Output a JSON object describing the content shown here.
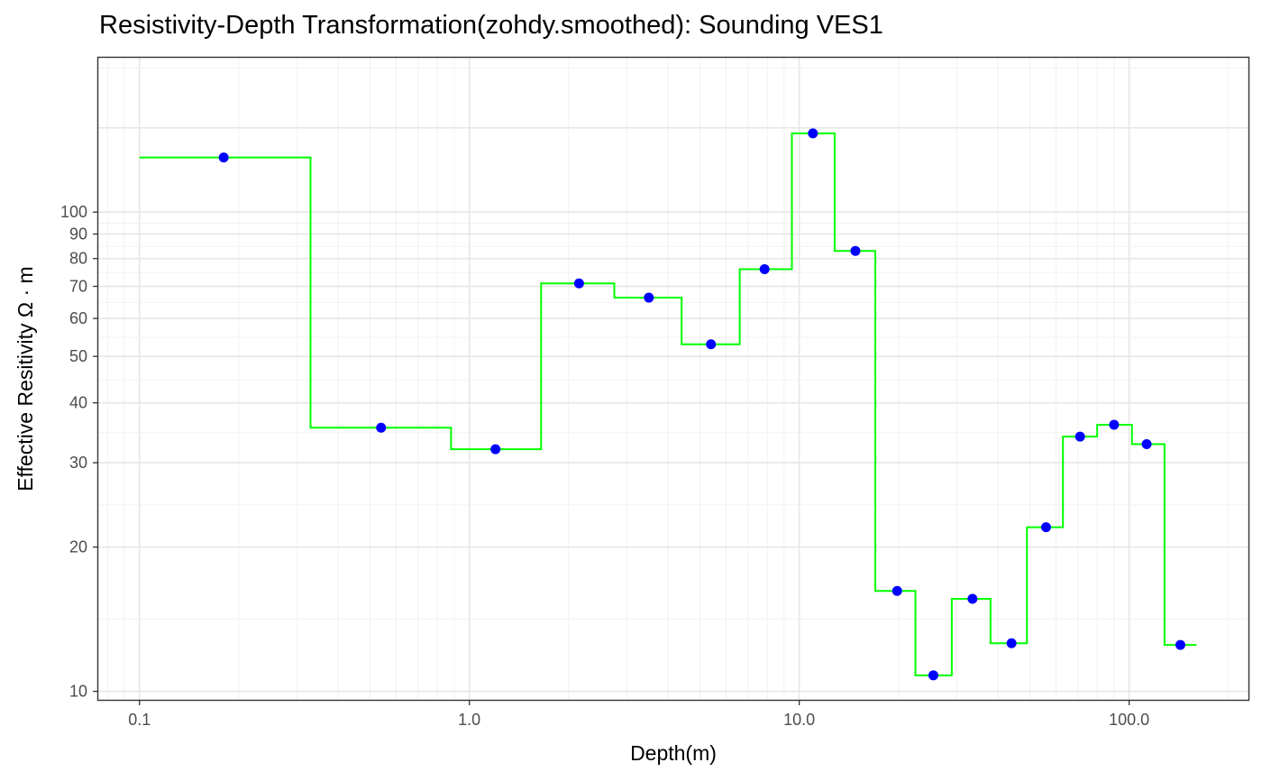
{
  "chart_data": {
    "type": "line",
    "title": "Resistivity-Depth Transformation(zohdy.smoothed): Sounding VES1",
    "xlabel": "Depth(m)",
    "ylabel_text": "Effective Resitivity",
    "ylabel_unit": "Ω · m",
    "x_scale": "log",
    "y_scale": "log",
    "xlim": [
      0.075,
      230
    ],
    "ylim": [
      9.6,
      210
    ],
    "x_ticks": [
      0.1,
      1,
      10,
      100
    ],
    "x_tick_labels": [
      "0.1",
      "1.0",
      "10.0",
      "100.0"
    ],
    "y_ticks": [
      10,
      20,
      30,
      40,
      50,
      60,
      70,
      80,
      90,
      100
    ],
    "y_tick_labels": [
      "10",
      "20",
      "30",
      "40",
      "50",
      "60",
      "70",
      "80",
      "90",
      "100"
    ],
    "grid": true,
    "series": [
      {
        "kind": "step",
        "color": "#00ff00",
        "x": [
          0.1,
          0.33,
          0.33,
          0.88,
          0.88,
          1.65,
          1.65,
          2.75,
          2.75,
          4.4,
          4.4,
          6.6,
          6.6,
          9.5,
          9.5,
          12.8,
          12.8,
          17.0,
          17.0,
          22.5,
          22.5,
          29.0,
          29.0,
          38.0,
          38.0,
          49.0,
          49.0,
          63.0,
          63.0,
          80.0,
          80.0,
          102.0,
          102.0,
          128.0,
          128.0,
          160.0
        ],
        "y": [
          130,
          130,
          35.5,
          35.5,
          32,
          32,
          71,
          71,
          66.3,
          66.3,
          53,
          53,
          76,
          76,
          146,
          146,
          83,
          83,
          16.2,
          16.2,
          10.8,
          10.8,
          15.6,
          15.6,
          12.6,
          12.6,
          22,
          22,
          34,
          34,
          36,
          36,
          32.8,
          32.8,
          12.5,
          12.5
        ]
      },
      {
        "kind": "points",
        "color": "#0000ff",
        "x": [
          0.18,
          0.54,
          1.2,
          2.15,
          3.5,
          5.4,
          7.85,
          11.0,
          14.8,
          19.8,
          25.5,
          33.5,
          44.0,
          56.0,
          71.0,
          90.0,
          113.0,
          143.0
        ],
        "y": [
          130,
          35.5,
          32,
          71,
          66.3,
          53,
          76,
          146,
          83,
          16.2,
          10.8,
          15.6,
          12.6,
          22,
          34,
          36,
          32.8,
          12.5
        ]
      }
    ]
  }
}
